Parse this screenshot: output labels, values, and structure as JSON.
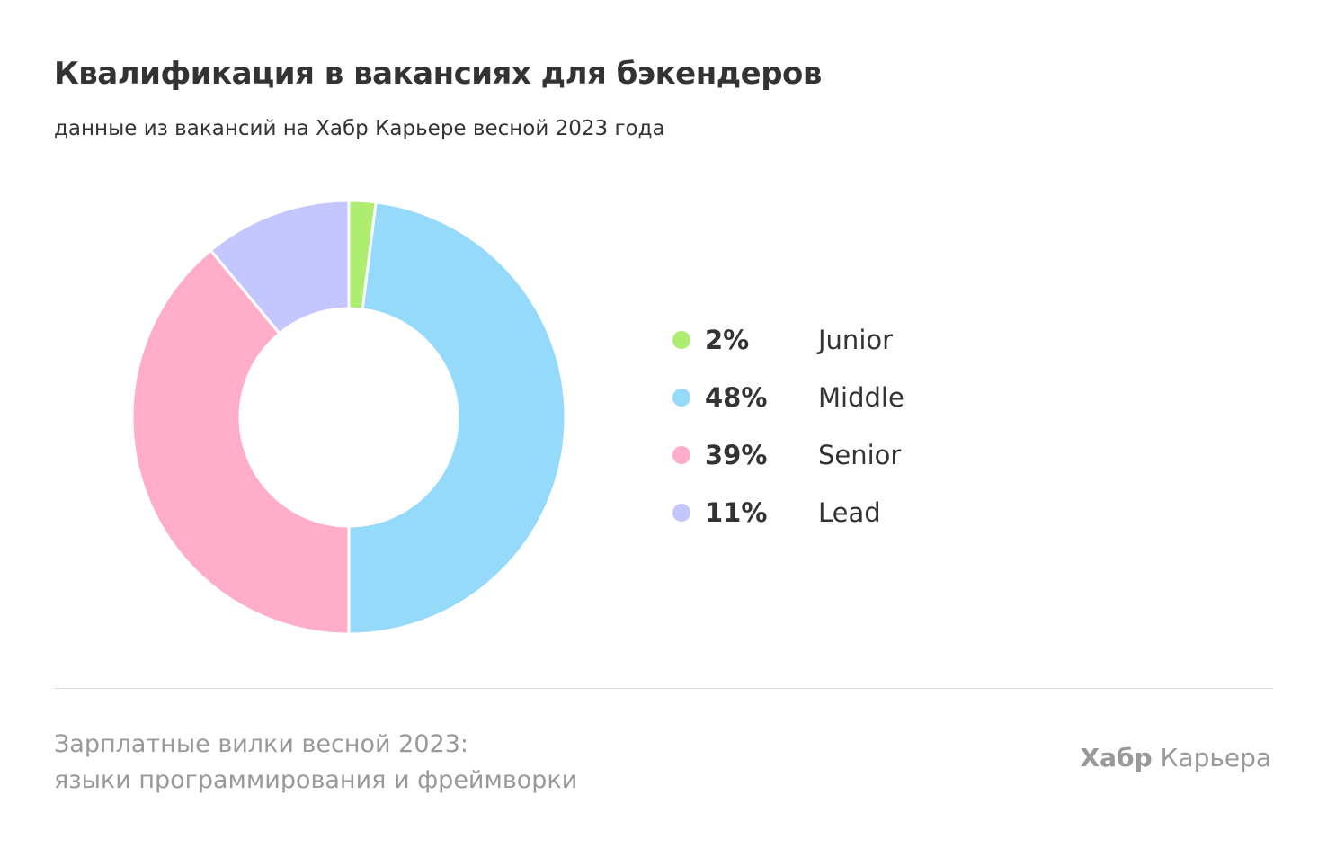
{
  "chart_data": {
    "type": "pie",
    "variant": "donut",
    "title": "Квалификация в вакансиях для бэкендеров",
    "subtitle": "данные из вакансий на Хабр Карьере весной 2023 года",
    "legend_position": "right",
    "categories": [
      "Junior",
      "Middle",
      "Senior",
      "Lead"
    ],
    "values": [
      2,
      48,
      39,
      11
    ],
    "value_labels": [
      "2%",
      "48%",
      "39%",
      "11%"
    ],
    "colors": [
      "#aeed6f",
      "#95d9fb",
      "#ffadc9",
      "#c3c6ff"
    ]
  },
  "footer": {
    "line1": "Зарплатные вилки весной 2023:",
    "line2": "языки программирования и фреймворки",
    "brand_bold": "Хабр",
    "brand_rest": " Карьера"
  }
}
